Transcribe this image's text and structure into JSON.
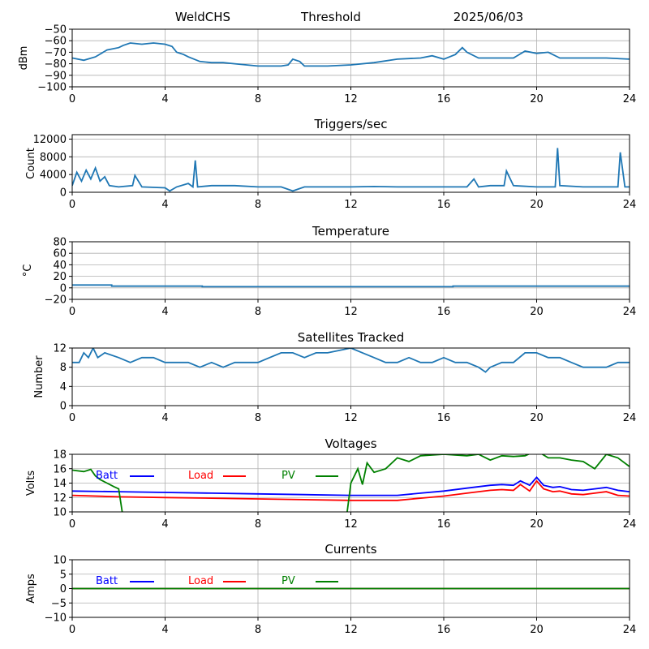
{
  "header": {
    "site": "WeldCHS",
    "mode": "Threshold",
    "date": "2025/06/03"
  },
  "colors": {
    "series_main": "#1f77b4",
    "batt": "#0000ff",
    "load": "#ff0000",
    "pv": "#008000",
    "grid": "#b0b0b0"
  },
  "chart_data": [
    {
      "id": "signal",
      "type": "line",
      "title": "",
      "ylabel": "dBm",
      "xlim": [
        0,
        24
      ],
      "ylim": [
        -100,
        -50
      ],
      "xticks": [
        0,
        4,
        8,
        12,
        16,
        20,
        24
      ],
      "yticks": [
        -100,
        -90,
        -80,
        -70,
        -60,
        -50
      ],
      "grid": true,
      "series": [
        {
          "color": "#1f77b4",
          "x": [
            0,
            0.5,
            1,
            1.5,
            2,
            2.2,
            2.5,
            3,
            3.5,
            4,
            4.3,
            4.5,
            4.8,
            5,
            5.5,
            6,
            6.5,
            7,
            7.5,
            8,
            8.5,
            9,
            9.3,
            9.5,
            9.8,
            10,
            11,
            12,
            13,
            14,
            15,
            15.5,
            16,
            16.5,
            16.8,
            17,
            17.5,
            18,
            19,
            19.5,
            20,
            20.5,
            21,
            22,
            23,
            24
          ],
          "y": [
            -75,
            -77,
            -74,
            -68,
            -66,
            -64,
            -62,
            -63,
            -62,
            -63,
            -65,
            -70,
            -72,
            -74,
            -78,
            -79,
            -79,
            -80,
            -81,
            -82,
            -82,
            -82,
            -81,
            -76,
            -78,
            -82,
            -82,
            -81,
            -79,
            -76,
            -75,
            -73,
            -76,
            -72,
            -66,
            -70,
            -75,
            -75,
            -75,
            -69,
            -71,
            -70,
            -75,
            -75,
            -75,
            -76
          ]
        }
      ]
    },
    {
      "id": "triggers",
      "type": "line",
      "title": "Triggers/sec",
      "ylabel": "Count",
      "xlim": [
        0,
        24
      ],
      "ylim": [
        0,
        13000
      ],
      "xticks": [
        0,
        4,
        8,
        12,
        16,
        20,
        24
      ],
      "yticks": [
        0,
        4000,
        8000,
        12000
      ],
      "grid": true,
      "series": [
        {
          "color": "#1f77b4",
          "x": [
            0,
            0.2,
            0.4,
            0.6,
            0.8,
            1,
            1.2,
            1.4,
            1.6,
            2,
            2.6,
            2.7,
            3,
            4,
            4.2,
            4.5,
            5,
            5.2,
            5.3,
            5.4,
            6,
            7,
            8,
            9,
            9.5,
            10,
            11,
            12,
            13,
            14,
            15,
            16,
            17,
            17.3,
            17.5,
            18,
            18.6,
            18.7,
            19,
            20,
            20.8,
            20.9,
            21,
            22,
            23,
            23.5,
            23.6,
            23.8,
            24
          ],
          "y": [
            1500,
            4500,
            2500,
            5000,
            3000,
            5500,
            2500,
            3500,
            1500,
            1200,
            1500,
            3800,
            1200,
            1000,
            300,
            1200,
            2000,
            1200,
            7200,
            1200,
            1500,
            1500,
            1200,
            1200,
            300,
            1200,
            1200,
            1200,
            1300,
            1200,
            1200,
            1200,
            1200,
            3000,
            1200,
            1500,
            1500,
            4800,
            1500,
            1200,
            1200,
            10000,
            1500,
            1200,
            1200,
            1200,
            9000,
            1200,
            1200
          ]
        }
      ]
    },
    {
      "id": "temperature",
      "type": "line",
      "title": "Temperature",
      "ylabel": "°C",
      "xlim": [
        0,
        24
      ],
      "ylim": [
        -20,
        80
      ],
      "xticks": [
        0,
        4,
        8,
        12,
        16,
        20,
        24
      ],
      "yticks": [
        -20,
        0,
        20,
        40,
        60,
        80
      ],
      "grid": true,
      "series": [
        {
          "color": "#1f77b4",
          "x": [
            0,
            1.7,
            1.7,
            5.6,
            5.6,
            16.4,
            16.4,
            24
          ],
          "y": [
            5,
            5,
            3,
            3,
            2,
            2,
            3,
            3
          ]
        }
      ]
    },
    {
      "id": "satellites",
      "type": "line",
      "title": "Satellites Tracked",
      "ylabel": "Number",
      "xlim": [
        0,
        24
      ],
      "ylim": [
        0,
        12
      ],
      "xticks": [
        0,
        4,
        8,
        12,
        16,
        20,
        24
      ],
      "yticks": [
        0,
        4,
        8,
        12
      ],
      "grid": true,
      "series": [
        {
          "color": "#1f77b4",
          "x": [
            0,
            0.3,
            0.5,
            0.7,
            0.9,
            1.1,
            1.4,
            2,
            2.5,
            3,
            3.5,
            4,
            4.5,
            5,
            5.5,
            6,
            6.5,
            7,
            7.5,
            8,
            8.5,
            9,
            9.5,
            10,
            10.5,
            11,
            12,
            12.5,
            13,
            13.5,
            14,
            14.5,
            15,
            15.5,
            16,
            16.5,
            17,
            17.5,
            17.8,
            18,
            18.5,
            19,
            19.5,
            20,
            20.5,
            21,
            21.5,
            22,
            22.5,
            23,
            23.5,
            24
          ],
          "y": [
            9,
            9,
            11,
            10,
            12,
            10,
            11,
            10,
            9,
            10,
            10,
            9,
            9,
            9,
            8,
            9,
            8,
            9,
            9,
            9,
            10,
            11,
            11,
            10,
            11,
            11,
            12,
            11,
            10,
            9,
            9,
            10,
            9,
            9,
            10,
            9,
            9,
            8,
            7,
            8,
            9,
            9,
            11,
            11,
            10,
            10,
            9,
            8,
            8,
            8,
            9,
            9
          ]
        }
      ]
    },
    {
      "id": "voltages",
      "type": "line",
      "title": "Voltages",
      "ylabel": "Volts",
      "xlim": [
        0,
        24
      ],
      "ylim": [
        10,
        18
      ],
      "xticks": [
        0,
        4,
        8,
        12,
        16,
        20,
        24
      ],
      "yticks": [
        10,
        12,
        14,
        16,
        18
      ],
      "grid": true,
      "series": [
        {
          "name": "Batt",
          "color": "#0000ff",
          "x": [
            0,
            2,
            4,
            6,
            8,
            10,
            12,
            13,
            14,
            15,
            16,
            17,
            18,
            18.5,
            19,
            19.3,
            19.7,
            20,
            20.3,
            20.7,
            21,
            21.5,
            22,
            22.5,
            23,
            23.5,
            24
          ],
          "y": [
            12.9,
            12.8,
            12.7,
            12.6,
            12.5,
            12.4,
            12.3,
            12.3,
            12.3,
            12.6,
            12.9,
            13.3,
            13.7,
            13.8,
            13.7,
            14.3,
            13.7,
            14.8,
            13.7,
            13.4,
            13.5,
            13.1,
            13.0,
            13.2,
            13.4,
            13.0,
            12.8
          ]
        },
        {
          "name": "Load",
          "color": "#ff0000",
          "x": [
            0,
            2,
            4,
            6,
            8,
            10,
            12,
            13,
            14,
            15,
            16,
            17,
            18,
            18.5,
            19,
            19.3,
            19.7,
            20,
            20.3,
            20.7,
            21,
            21.5,
            22,
            22.5,
            23,
            23.5,
            24
          ],
          "y": [
            12.3,
            12.1,
            12.0,
            11.9,
            11.8,
            11.7,
            11.6,
            11.6,
            11.6,
            11.9,
            12.2,
            12.6,
            13.0,
            13.1,
            13.0,
            13.8,
            12.9,
            14.3,
            13.2,
            12.8,
            12.9,
            12.5,
            12.4,
            12.6,
            12.8,
            12.3,
            12.2
          ]
        },
        {
          "name": "PV",
          "color": "#008000",
          "x": [
            0,
            0.5,
            0.8,
            1,
            1.2,
            1.5,
            1.8,
            2,
            2.2,
            11.8,
            12,
            12.3,
            12.5,
            12.7,
            13,
            13.5,
            14,
            14.5,
            15,
            16,
            17,
            17.5,
            18,
            18.5,
            19,
            19.5,
            20,
            20.5,
            21,
            21.5,
            22,
            22.5,
            23,
            23.5,
            24
          ],
          "y": [
            15.8,
            15.6,
            15.9,
            15.0,
            14.5,
            14.0,
            13.5,
            13.2,
            9.0,
            9.0,
            14.0,
            16.0,
            13.8,
            16.8,
            15.5,
            16.0,
            17.5,
            17.0,
            17.8,
            18.0,
            17.8,
            18.0,
            17.2,
            17.8,
            17.7,
            17.8,
            18.5,
            17.5,
            17.5,
            17.2,
            17.0,
            16.0,
            18.0,
            17.5,
            16.3
          ]
        }
      ]
    },
    {
      "id": "currents",
      "type": "line",
      "title": "Currents",
      "ylabel": "Amps",
      "xlim": [
        0,
        24
      ],
      "ylim": [
        -10,
        10
      ],
      "xticks": [
        0,
        4,
        8,
        12,
        16,
        20,
        24
      ],
      "yticks": [
        -10,
        -5,
        0,
        5,
        10
      ],
      "grid": true,
      "series": [
        {
          "name": "Batt",
          "color": "#0000ff",
          "x": [
            0,
            24
          ],
          "y": [
            0,
            0
          ]
        },
        {
          "name": "Load",
          "color": "#ff0000",
          "x": [
            0,
            24
          ],
          "y": [
            0,
            0
          ]
        },
        {
          "name": "PV",
          "color": "#008000",
          "x": [
            0,
            24
          ],
          "y": [
            0,
            0
          ]
        }
      ]
    }
  ]
}
